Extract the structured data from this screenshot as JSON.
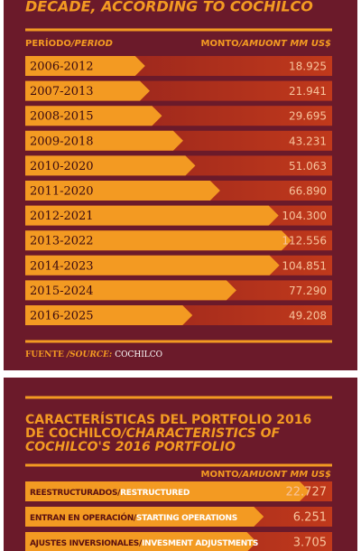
{
  "chart_data": [
    {
      "type": "bar",
      "title": "DECADE, ACCORDING TO COCHILCO",
      "category_header": [
        "PERÍODO",
        "/PERIOD"
      ],
      "value_header": [
        "MONTO",
        "/AMUONT MM US$"
      ],
      "categories": [
        "2006-2012",
        "2007-2013",
        "2008-2015",
        "2009-2018",
        "2010-2020",
        "2011-2020",
        "2012-2021",
        "2013-2022",
        "2014-2023",
        "2015-2024",
        "2016-2025"
      ],
      "values": [
        18925,
        21941,
        29695,
        43231,
        51063,
        66890,
        104300,
        112556,
        104851,
        77290,
        49208
      ],
      "value_labels": [
        "18.925",
        "21.941",
        "29.695",
        "43.231",
        "51.063",
        "66.890",
        "104.300",
        "112.556",
        "104.851",
        "77.290",
        "49.208"
      ],
      "color": "#f39a22",
      "source": [
        "FUENTE",
        "/SOURCE:",
        "COCHILCO"
      ]
    },
    {
      "type": "bar",
      "title": [
        "CARACTERÍSTICAS DEL PORTFOLIO 2016",
        "DE COCHILCO",
        "/CHARACTERISTICS OF",
        "COCHILCO'S 2016 PORTFOLIO"
      ],
      "value_header": [
        "MONTO",
        "/AMUONT MM US$"
      ],
      "categories": [
        [
          "REESTRUCTURADOS/",
          "RESTRUCTURED"
        ],
        [
          "ENTRAN EN OPERACIÓN/",
          "STARTING OPERATIONS"
        ],
        [
          "AJUSTES INVERSIONALES/",
          "INVESMENT ADJUSTMENTS"
        ]
      ],
      "values": [
        22727,
        6251,
        3705
      ],
      "value_labels": [
        "22.727",
        "6.251",
        "3.705"
      ],
      "color": "#f39a22"
    }
  ]
}
